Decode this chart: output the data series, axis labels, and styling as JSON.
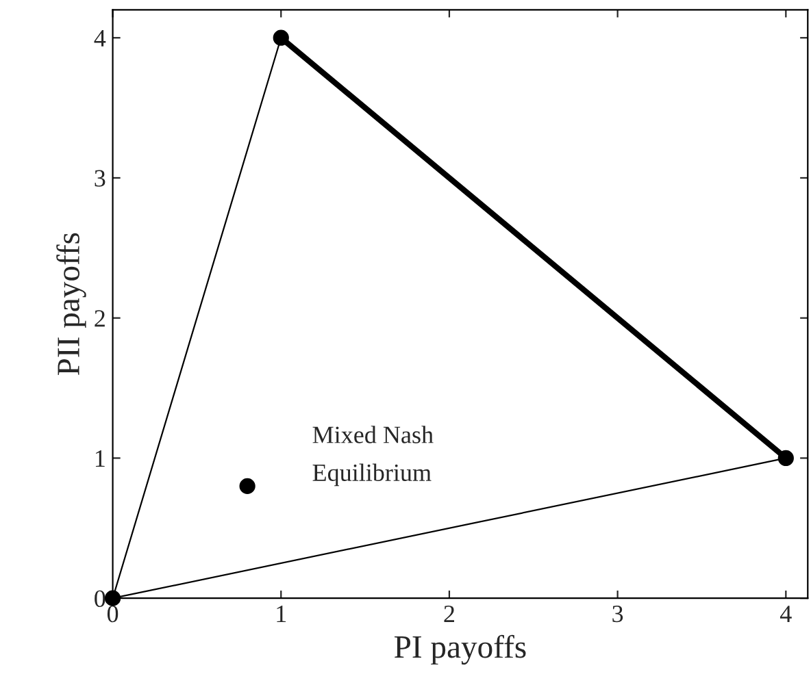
{
  "chart_data": {
    "type": "line",
    "xlabel": "PI payoffs",
    "ylabel": "PII payoffs",
    "series": [
      {
        "color": "#000000",
        "x": [
          1,
          0,
          4
        ],
        "values": [
          4,
          0,
          1
        ]
      },
      {
        "color": "#000000",
        "x": [
          1,
          4
        ],
        "values": [
          4,
          1
        ]
      },
      {
        "type": "scatter",
        "color": "#000000",
        "x": [
          0,
          1,
          4,
          0.8
        ],
        "values": [
          0,
          4,
          1,
          0.8
        ],
        "marker": "circle"
      }
    ],
    "annotations": [
      {
        "text": "Mixed Nash\nEquilibrium",
        "x": 0.8,
        "y": 0.8
      }
    ],
    "xlim": [
      0,
      4.13
    ],
    "ylim": [
      0,
      4.2
    ],
    "xticks": [
      0,
      1,
      2,
      3,
      4
    ],
    "yticks": [
      0,
      1,
      2,
      3,
      4
    ],
    "grid": false,
    "legend": false
  }
}
